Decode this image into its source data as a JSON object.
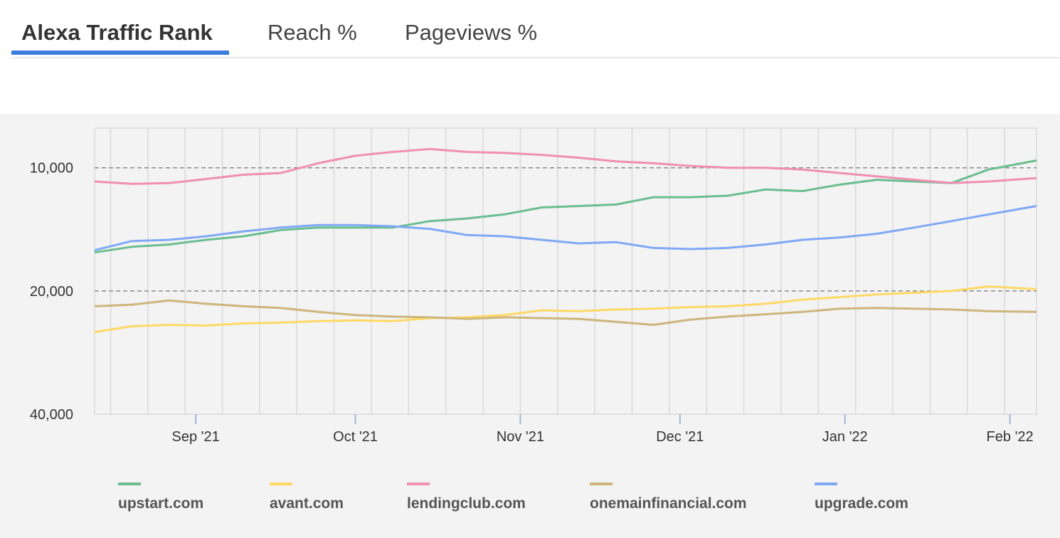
{
  "tabs": [
    {
      "label": "Alexa Traffic Rank",
      "active": true
    },
    {
      "label": "Reach %",
      "active": false
    },
    {
      "label": "Pageviews %",
      "active": false
    }
  ],
  "chart_data": {
    "type": "line",
    "title": "",
    "xlabel": "",
    "ylabel": "",
    "y_scale": "log",
    "y_inverted": true,
    "y_range": [
      8000,
      40000
    ],
    "x_range": [
      "2021-08-13",
      "2022-02-06"
    ],
    "y_ticks": [
      {
        "value": 10000,
        "label": "10,000"
      },
      {
        "value": 20000,
        "label": "20,000"
      },
      {
        "value": 40000,
        "label": "40,000"
      }
    ],
    "x_ticks": [
      {
        "date": "2021-09-01",
        "label": "Sep '21"
      },
      {
        "date": "2021-10-01",
        "label": "Oct '21"
      },
      {
        "date": "2021-11-01",
        "label": "Nov '21"
      },
      {
        "date": "2021-12-01",
        "label": "Dec '21"
      },
      {
        "date": "2022-01-01",
        "label": "Jan '22"
      },
      {
        "date": "2022-02-01",
        "label": "Feb '22"
      }
    ],
    "dashed_gridlines": [
      10000,
      20000
    ],
    "vertical_gridlines": true,
    "legend_position": "bottom",
    "series": [
      {
        "name": "upstart.com",
        "color": "#6bbd8f",
        "points": [
          [
            "2021-08-13",
            16100
          ],
          [
            "2021-08-20",
            15600
          ],
          [
            "2021-08-27",
            15400
          ],
          [
            "2021-09-03",
            15000
          ],
          [
            "2021-09-10",
            14700
          ],
          [
            "2021-09-17",
            14200
          ],
          [
            "2021-09-24",
            14000
          ],
          [
            "2021-10-01",
            14000
          ],
          [
            "2021-10-08",
            14000
          ],
          [
            "2021-10-15",
            13500
          ],
          [
            "2021-10-22",
            13300
          ],
          [
            "2021-10-29",
            13000
          ],
          [
            "2021-11-05",
            12500
          ],
          [
            "2021-11-12",
            12400
          ],
          [
            "2021-11-19",
            12300
          ],
          [
            "2021-11-26",
            11800
          ],
          [
            "2021-12-03",
            11800
          ],
          [
            "2021-12-10",
            11700
          ],
          [
            "2021-12-17",
            11300
          ],
          [
            "2021-12-24",
            11400
          ],
          [
            "2021-12-31",
            11000
          ],
          [
            "2022-01-07",
            10700
          ],
          [
            "2022-01-14",
            10800
          ],
          [
            "2022-01-21",
            10900
          ],
          [
            "2022-01-28",
            10100
          ],
          [
            "2022-02-06",
            9600
          ]
        ]
      },
      {
        "name": "avant.com",
        "color": "#ffd866",
        "points": [
          [
            "2021-08-13",
            25200
          ],
          [
            "2021-08-20",
            24400
          ],
          [
            "2021-08-27",
            24200
          ],
          [
            "2021-09-03",
            24300
          ],
          [
            "2021-09-10",
            24000
          ],
          [
            "2021-09-17",
            23900
          ],
          [
            "2021-09-24",
            23700
          ],
          [
            "2021-10-01",
            23600
          ],
          [
            "2021-10-08",
            23700
          ],
          [
            "2021-10-15",
            23300
          ],
          [
            "2021-10-22",
            23200
          ],
          [
            "2021-10-29",
            22900
          ],
          [
            "2021-11-05",
            22300
          ],
          [
            "2021-11-12",
            22400
          ],
          [
            "2021-11-19",
            22200
          ],
          [
            "2021-11-26",
            22100
          ],
          [
            "2021-12-03",
            21900
          ],
          [
            "2021-12-10",
            21800
          ],
          [
            "2021-12-17",
            21500
          ],
          [
            "2021-12-24",
            21000
          ],
          [
            "2021-12-31",
            20700
          ],
          [
            "2022-01-07",
            20400
          ],
          [
            "2022-01-14",
            20200
          ],
          [
            "2022-01-21",
            20000
          ],
          [
            "2022-01-28",
            19500
          ],
          [
            "2022-02-06",
            19800
          ]
        ]
      },
      {
        "name": "lendingclub.com",
        "color": "#f08fb0",
        "points": [
          [
            "2021-08-13",
            10800
          ],
          [
            "2021-08-20",
            10950
          ],
          [
            "2021-08-27",
            10900
          ],
          [
            "2021-09-03",
            10650
          ],
          [
            "2021-09-10",
            10400
          ],
          [
            "2021-09-17",
            10300
          ],
          [
            "2021-09-24",
            9750
          ],
          [
            "2021-10-01",
            9350
          ],
          [
            "2021-10-08",
            9150
          ],
          [
            "2021-10-15",
            9000
          ],
          [
            "2021-10-22",
            9150
          ],
          [
            "2021-10-29",
            9200
          ],
          [
            "2021-11-05",
            9300
          ],
          [
            "2021-11-12",
            9450
          ],
          [
            "2021-11-19",
            9650
          ],
          [
            "2021-11-26",
            9750
          ],
          [
            "2021-12-03",
            9900
          ],
          [
            "2021-12-10",
            10000
          ],
          [
            "2021-12-17",
            10000
          ],
          [
            "2021-12-24",
            10100
          ],
          [
            "2021-12-31",
            10300
          ],
          [
            "2022-01-07",
            10500
          ],
          [
            "2022-01-14",
            10700
          ],
          [
            "2022-01-21",
            10900
          ],
          [
            "2022-01-28",
            10800
          ],
          [
            "2022-02-06",
            10600
          ]
        ]
      },
      {
        "name": "onemainfinancial.com",
        "color": "#cdb57c",
        "points": [
          [
            "2021-08-13",
            21800
          ],
          [
            "2021-08-20",
            21600
          ],
          [
            "2021-08-27",
            21100
          ],
          [
            "2021-09-03",
            21500
          ],
          [
            "2021-09-10",
            21800
          ],
          [
            "2021-09-17",
            22000
          ],
          [
            "2021-09-24",
            22500
          ],
          [
            "2021-10-01",
            22900
          ],
          [
            "2021-10-08",
            23100
          ],
          [
            "2021-10-15",
            23200
          ],
          [
            "2021-10-22",
            23400
          ],
          [
            "2021-10-29",
            23200
          ],
          [
            "2021-11-05",
            23300
          ],
          [
            "2021-11-12",
            23400
          ],
          [
            "2021-11-19",
            23800
          ],
          [
            "2021-11-26",
            24200
          ],
          [
            "2021-12-03",
            23500
          ],
          [
            "2021-12-10",
            23100
          ],
          [
            "2021-12-17",
            22800
          ],
          [
            "2021-12-24",
            22500
          ],
          [
            "2021-12-31",
            22100
          ],
          [
            "2022-01-07",
            22000
          ],
          [
            "2022-01-14",
            22100
          ],
          [
            "2022-01-21",
            22200
          ],
          [
            "2022-01-28",
            22400
          ],
          [
            "2022-02-06",
            22500
          ]
        ]
      },
      {
        "name": "upgrade.com",
        "color": "#7fa8f5",
        "points": [
          [
            "2021-08-13",
            15900
          ],
          [
            "2021-08-20",
            15100
          ],
          [
            "2021-08-27",
            15000
          ],
          [
            "2021-09-03",
            14700
          ],
          [
            "2021-09-10",
            14300
          ],
          [
            "2021-09-17",
            14000
          ],
          [
            "2021-09-24",
            13800
          ],
          [
            "2021-10-01",
            13800
          ],
          [
            "2021-10-08",
            13900
          ],
          [
            "2021-10-15",
            14100
          ],
          [
            "2021-10-22",
            14600
          ],
          [
            "2021-10-29",
            14700
          ],
          [
            "2021-11-05",
            15000
          ],
          [
            "2021-11-12",
            15300
          ],
          [
            "2021-11-19",
            15200
          ],
          [
            "2021-11-26",
            15700
          ],
          [
            "2021-12-03",
            15800
          ],
          [
            "2021-12-10",
            15700
          ],
          [
            "2021-12-17",
            15400
          ],
          [
            "2021-12-24",
            15000
          ],
          [
            "2021-12-31",
            14800
          ],
          [
            "2022-01-07",
            14500
          ],
          [
            "2022-01-14",
            14000
          ],
          [
            "2022-01-21",
            13500
          ],
          [
            "2022-01-28",
            13000
          ],
          [
            "2022-02-06",
            12400
          ]
        ]
      }
    ]
  }
}
